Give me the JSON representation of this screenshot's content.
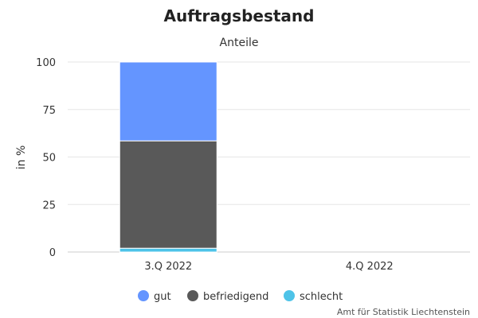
{
  "chart_data": {
    "type": "bar",
    "stacked": true,
    "title": "Auftragsbestand",
    "subtitle": "Anteile",
    "xlabel": "",
    "ylabel": "in %",
    "ylim": [
      0,
      100
    ],
    "yticks": [
      0,
      25,
      50,
      75,
      100
    ],
    "grid": true,
    "legend_position": "bottom",
    "categories": [
      "3.Q 2022",
      "4.Q 2022"
    ],
    "series": [
      {
        "name": "schlecht",
        "values": [
          2,
          null
        ],
        "color": "#4ec3e8"
      },
      {
        "name": "befriedigend",
        "values": [
          56.5,
          null
        ],
        "color": "#595959"
      },
      {
        "name": "gut",
        "values": [
          41.5,
          null
        ],
        "color": "#6495ff"
      }
    ],
    "legend_order": [
      "gut",
      "befriedigend",
      "schlecht"
    ],
    "credit": "Amt für Statistik Liechtenstein"
  }
}
